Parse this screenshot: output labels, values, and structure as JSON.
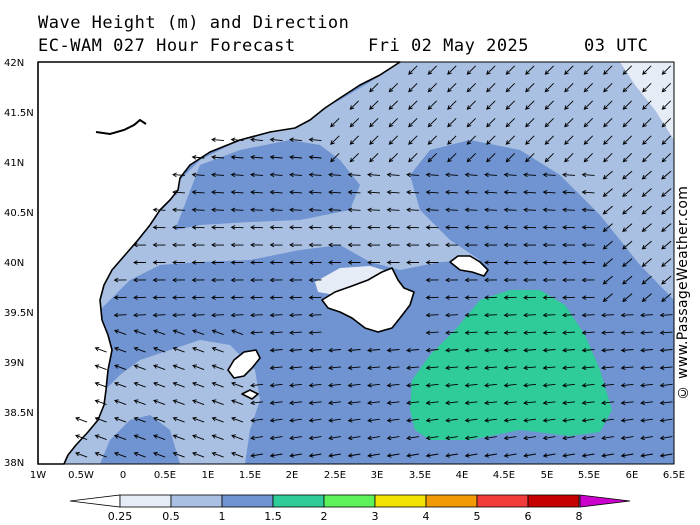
{
  "header": {
    "title": "Wave Height (m) and Direction",
    "subtitle": "EC-WAM 027 Hour Forecast",
    "date": "Fri 02 May 2025",
    "time": "03 UTC"
  },
  "credit": "© www.PassageWeather.com",
  "axes": {
    "lat_labels": [
      "42N",
      "41.5N",
      "41N",
      "40.5N",
      "40N",
      "39.5N",
      "39N",
      "38.5N",
      "38N"
    ],
    "lon_labels": [
      "1W",
      "0.5W",
      "0",
      "0.5E",
      "1E",
      "1.5E",
      "2E",
      "2.5E",
      "3E",
      "3.5E",
      "4E",
      "4.5E",
      "5E",
      "5.5E",
      "6E",
      "6.5E"
    ]
  },
  "legend": {
    "labels": [
      "0.25",
      "0.5",
      "1",
      "1.5",
      "2",
      "3",
      "4",
      "5",
      "6",
      "8"
    ],
    "colors": [
      "#e6ecf6",
      "#a9c0e2",
      "#6f94d1",
      "#2fcc99",
      "#5ef25a",
      "#f2e203",
      "#f29a05",
      "#f23c3c",
      "#c60000",
      "#cc00cc"
    ],
    "units": "m"
  },
  "colors": {
    "water_min": "#e6ecf6",
    "water_low": "#a9c0e2",
    "water_mid": "#6f94d1",
    "water_high": "#2fcc99",
    "land": "#ffffff",
    "arrow": "#000000"
  }
}
